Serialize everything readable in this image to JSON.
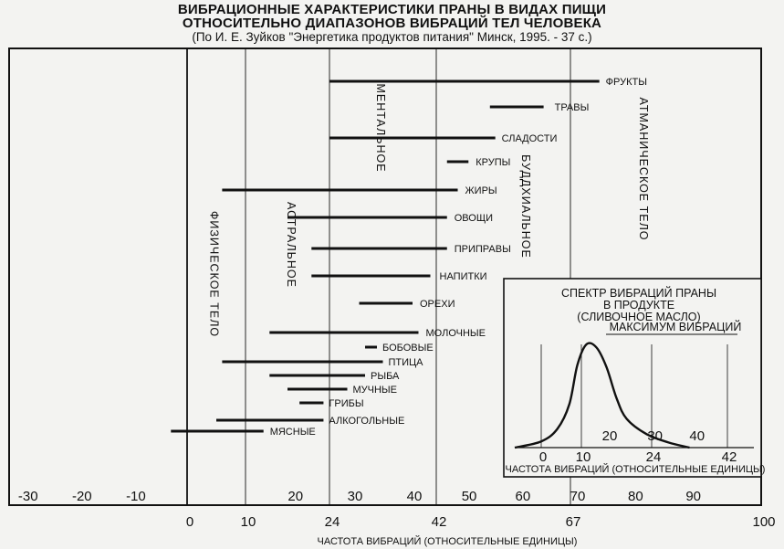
{
  "header": {
    "title_1": "ВИБРАЦИОННЫЕ ХАРАКТЕРИСТИКИ ПРАНЫ В ВИДАХ ПИЩИ",
    "title_2": "ОТНОСИТЕЛЬНО ДИАПАЗОНОВ ВИБРАЦИЙ ТЕЛ ЧЕЛОВЕКА",
    "source": "(По И. Е. Зуйков \"Энергетика продуктов питания\" Минск, 1995. - 37 с.)"
  },
  "chart_data": [
    {
      "type": "range-bar",
      "xlabel": "ЧАСТОТА ВИБРАЦИЙ (ОТНОСИТЕЛЬНЫЕ ЕДИНИЦЫ)",
      "xlim": [
        -33,
        100
      ],
      "x_ticks_lower": [
        0,
        10,
        24,
        42,
        67,
        100
      ],
      "x_ticks_upper": [
        -30,
        -20,
        -10,
        20,
        30,
        40,
        50,
        60,
        70,
        80,
        90
      ],
      "gridlines": [
        0,
        10,
        24,
        42,
        67
      ],
      "bands": [
        {
          "label": "ФИЗИЧЕСКОЕ ТЕЛО",
          "x": 4
        },
        {
          "label": "АСТРАЛЬНОЕ",
          "x": 17
        },
        {
          "label": "МЕНТАЛЬНОЕ",
          "x": 32
        },
        {
          "label": "БУДДХИАЛЬНОЕ",
          "x": 58
        },
        {
          "label": "АТМАНИЧЕСКОЕ ТЕЛО",
          "x": 79
        }
      ],
      "series": [
        {
          "name": "ФРУКТЫ",
          "range": [
            24,
            72
          ]
        },
        {
          "name": "ТРАВЫ",
          "range": [
            52,
            62
          ]
        },
        {
          "name": "СЛАДОСТИ",
          "range": [
            24,
            53
          ]
        },
        {
          "name": "КРУПЫ",
          "range": [
            44,
            48
          ]
        },
        {
          "name": "ЖИРЫ",
          "range": [
            6,
            46
          ]
        },
        {
          "name": "ОВОЩИ",
          "range": [
            17,
            44
          ]
        },
        {
          "name": "ПРИПРАВЫ",
          "range": [
            21,
            44
          ]
        },
        {
          "name": "НАПИТКИ",
          "range": [
            21,
            41
          ]
        },
        {
          "name": "ОРЕХИ",
          "range": [
            29,
            38
          ]
        },
        {
          "name": "МОЛОЧНЫЕ",
          "range": [
            14,
            39
          ]
        },
        {
          "name": "БОБОВЫЕ",
          "range": [
            30,
            32
          ]
        },
        {
          "name": "ПТИЦА",
          "range": [
            6,
            33
          ]
        },
        {
          "name": "РЫБА",
          "range": [
            14,
            30
          ]
        },
        {
          "name": "МУЧНЫЕ",
          "range": [
            17,
            27
          ]
        },
        {
          "name": "ГРИБЫ",
          "range": [
            19,
            23
          ]
        },
        {
          "name": "АЛКОГОЛЬНЫЕ",
          "range": [
            5,
            23
          ]
        },
        {
          "name": "МЯСНЫЕ",
          "range": [
            -3,
            13
          ]
        }
      ]
    },
    {
      "type": "line",
      "title": "СПЕКТР ВИБРАЦИЙ ПРАНЫ В ПРОДУКТЕ (СЛИВОЧНОЕ МАСЛО)",
      "annotation": "МАКСИМУМ ВИБРАЦИЙ",
      "xlabel": "ЧАСТОТА ВИБРАЦИЙ (ОТНОСИТЕЛЬНЫЕ ЕДИНИЦЫ)",
      "xlim": [
        -5,
        48
      ],
      "x_ticks_lower": [
        0,
        10,
        24,
        42
      ],
      "x_ticks_upper": [
        20,
        30,
        40
      ],
      "gridlines": [
        0,
        10,
        24,
        42
      ],
      "x": [
        -5,
        0,
        4,
        7,
        9,
        11,
        13,
        15,
        17,
        19,
        23,
        28,
        33
      ],
      "y": [
        0.0,
        0.06,
        0.18,
        0.42,
        0.8,
        1.0,
        0.97,
        0.78,
        0.48,
        0.28,
        0.13,
        0.05,
        0.0
      ]
    }
  ]
}
